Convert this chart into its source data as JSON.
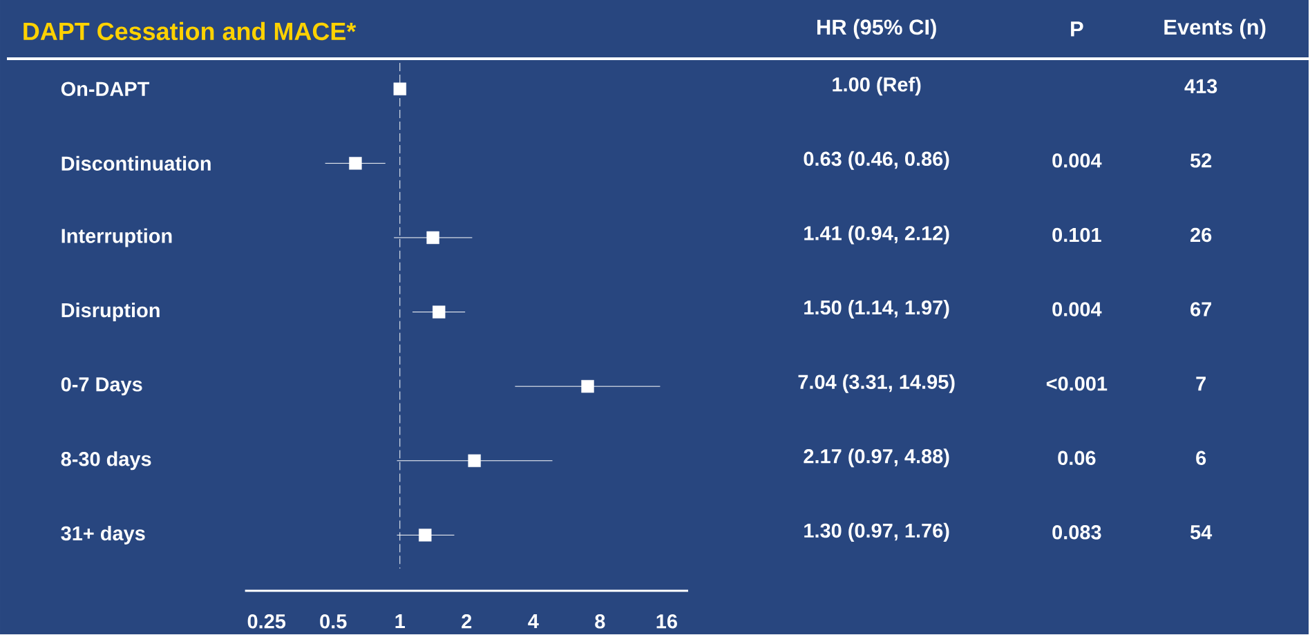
{
  "chart_data": {
    "type": "scatter",
    "orientation": "horizontal",
    "title": "DAPT Cessation and MACE*",
    "categories": [
      "On-DAPT",
      "Discontinuation",
      "Interruption",
      "Disruption",
      "0-7 Days",
      "8-30 days",
      "31+ days"
    ],
    "values": [
      1.0,
      0.63,
      1.41,
      1.5,
      7.04,
      2.17,
      1.3
    ],
    "errors": [
      null,
      [
        0.46,
        0.86
      ],
      [
        0.94,
        2.12
      ],
      [
        1.14,
        1.97
      ],
      [
        3.31,
        14.95
      ],
      [
        0.97,
        4.88
      ],
      [
        0.97,
        1.76
      ]
    ],
    "color": "#ffffff",
    "marker": "square",
    "log": "x",
    "xlim": [
      0.2,
      20
    ],
    "xticks": [
      0.25,
      0.5,
      1,
      2,
      4,
      8,
      16
    ],
    "ref_lines": [
      {
        "axis": "x",
        "value": 1,
        "line_style": "dashed",
        "color": "#ffffff"
      }
    ],
    "annotations": [
      "HR (95% CI)",
      "P",
      "Events (n)",
      "1.00 (Ref)",
      "0.63 (0.46, 0.86)",
      "1.41 (0.94, 2.12)",
      "1.50 (1.14, 1.97)",
      "7.04 (3.31, 14.95)",
      "2.17 (0.97, 4.88)",
      "1.30 (0.97, 1.76)",
      "0.004",
      "0.101",
      "0.004",
      "<0.001",
      "0.06",
      "0.083",
      "413",
      "52",
      "26",
      "67",
      "7",
      "6",
      "54"
    ]
  }
}
